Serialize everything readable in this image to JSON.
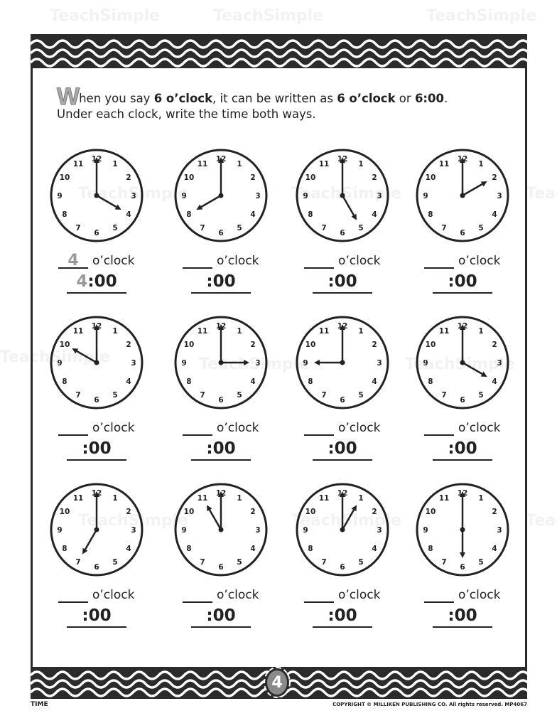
{
  "instructions": {
    "drop_cap": "W",
    "line1_a": "hen you say ",
    "line1_b": "6 o’clock",
    "line1_c": ", it can be written as ",
    "line1_d": "6 o’clock",
    "line1_e": " or ",
    "line1_f": "6:00",
    "line1_g": ".",
    "line2": "Under each clock, write the time both ways."
  },
  "clock_numbers": [
    "12",
    "1",
    "2",
    "3",
    "4",
    "5",
    "6",
    "7",
    "8",
    "9",
    "10",
    "11"
  ],
  "oclock_label": "o’clock",
  "minutes_label": ":00",
  "clocks": [
    {
      "hour": 4,
      "example_answer": "4"
    },
    {
      "hour": 8
    },
    {
      "hour": 5
    },
    {
      "hour": 2
    },
    {
      "hour": 10
    },
    {
      "hour": 3
    },
    {
      "hour": 9
    },
    {
      "hour": 4
    },
    {
      "hour": 7
    },
    {
      "hour": 11
    },
    {
      "hour": 1
    },
    {
      "hour": 6
    }
  ],
  "page_number": "4",
  "footer": {
    "section": "TIME",
    "copyright": "COPYRIGHT © MILLIKEN PUBLISHING CO. All rights reserved.  MP4067"
  },
  "watermark": "TeachSimple",
  "colors": {
    "band": "#2b2b2b",
    "example_gray": "#999999"
  }
}
